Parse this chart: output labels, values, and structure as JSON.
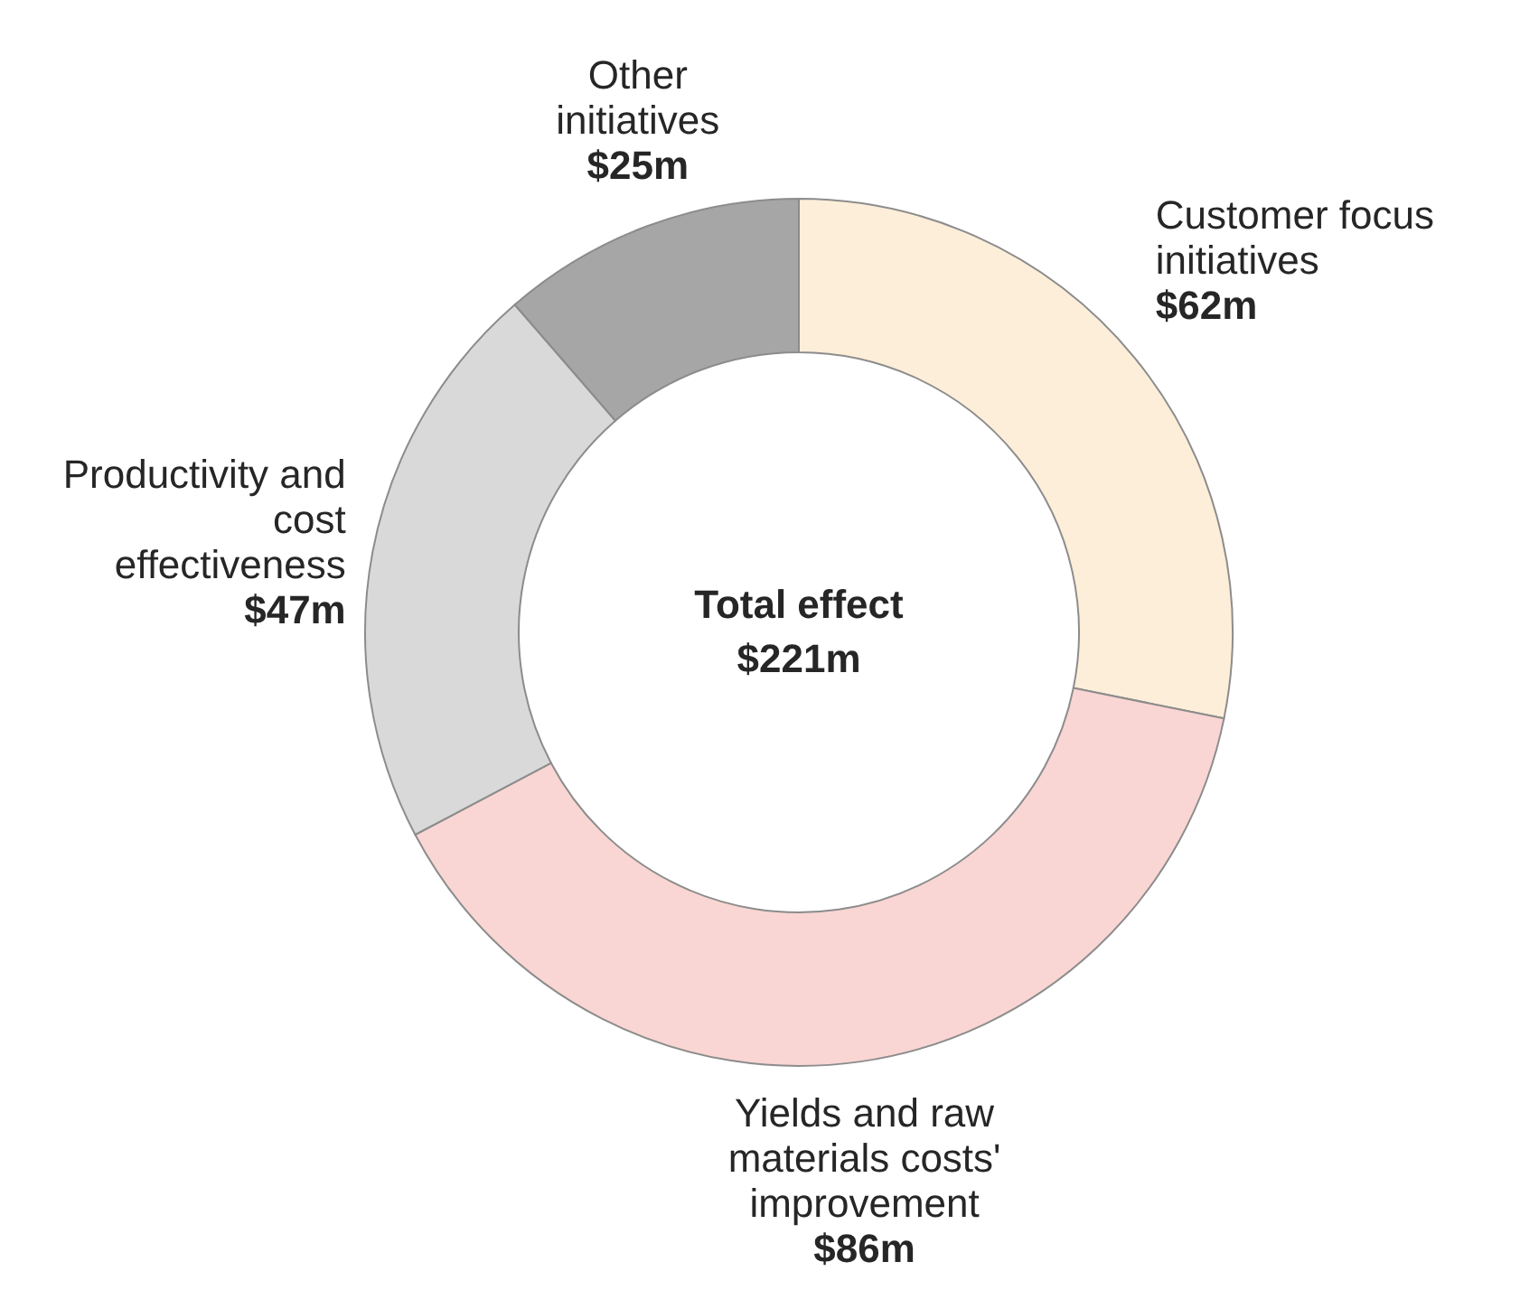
{
  "chart_data": {
    "type": "donut",
    "categories": [
      "Customer focus initiatives",
      "Yields and raw materials costs' improvement",
      "Productivity and cost effectiveness",
      "Other initiatives"
    ],
    "values": [
      62,
      86,
      47,
      25
    ],
    "value_labels": [
      "$62m",
      "$86m",
      "$47m",
      "$25m"
    ],
    "colors": [
      "#fdeed9",
      "#f9d6d3",
      "#d9d9d9",
      "#a6a6a6"
    ],
    "annotations": [
      "Total effect",
      "$221m"
    ]
  }
}
